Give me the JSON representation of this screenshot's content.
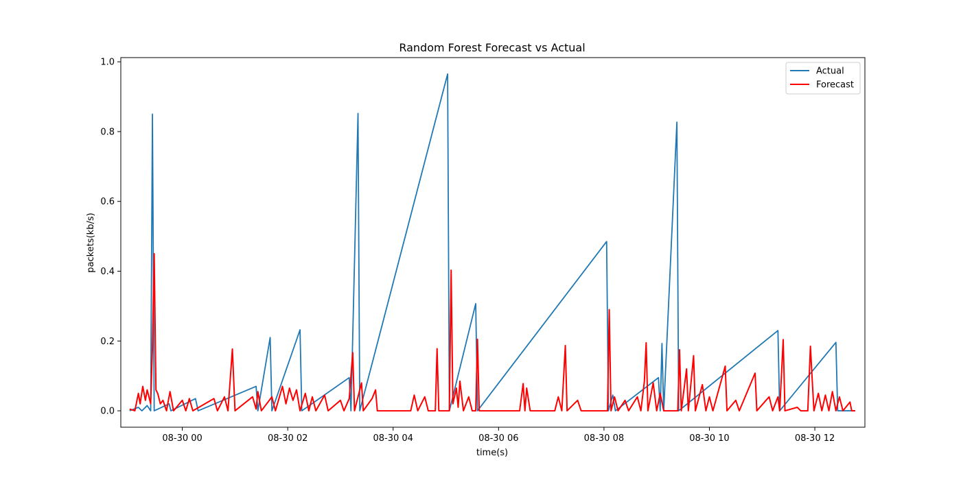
{
  "chart_data": {
    "type": "line",
    "title": "Random Forest Forecast vs Actual",
    "xlabel": "time(s)",
    "ylabel": "packets(kb/s)",
    "xlim": [
      "08-29 22:50",
      "08-30 12:57"
    ],
    "ylim": [
      -0.047,
      1.012
    ],
    "x_ticks": [
      "08-30 00",
      "08-30 02",
      "08-30 04",
      "08-30 06",
      "08-30 08",
      "08-30 10",
      "08-30 12"
    ],
    "y_ticks": [
      "0.0",
      "0.2",
      "0.4",
      "0.6",
      "0.8",
      "1.0"
    ],
    "grid": false,
    "legend": {
      "position": "top-right",
      "entries": [
        "Actual",
        "Forecast"
      ]
    },
    "series": [
      {
        "name": "Actual",
        "color": "#1f77b4",
        "points": [
          [
            "08-29 23:00",
            0.0
          ],
          [
            "08-29 23:10",
            0.01
          ],
          [
            "08-29 23:14",
            0.0
          ],
          [
            "08-29 23:20",
            0.015
          ],
          [
            "08-29 23:24",
            0.0
          ],
          [
            "08-29 23:26",
            0.85
          ],
          [
            "08-29 23:28",
            0.0
          ],
          [
            "08-29 23:45",
            0.02
          ],
          [
            "08-29 23:47",
            0.0
          ],
          [
            "08-30 00:15",
            0.035
          ],
          [
            "08-30 00:18",
            0.0
          ],
          [
            "08-30 01:24",
            0.07
          ],
          [
            "08-30 01:26",
            0.0
          ],
          [
            "08-30 01:40",
            0.21
          ],
          [
            "08-30 01:42",
            0.0
          ],
          [
            "08-30 02:14",
            0.232
          ],
          [
            "08-30 02:16",
            0.0
          ],
          [
            "08-30 03:10",
            0.095
          ],
          [
            "08-30 03:12",
            0.0
          ],
          [
            "08-30 03:20",
            0.852
          ],
          [
            "08-30 03:22",
            0.0
          ],
          [
            "08-30 05:02",
            0.965
          ],
          [
            "08-30 05:04",
            0.0
          ],
          [
            "08-30 05:34",
            0.307
          ],
          [
            "08-30 05:36",
            0.0
          ],
          [
            "08-30 08:03",
            0.485
          ],
          [
            "08-30 08:05",
            0.0
          ],
          [
            "08-30 08:10",
            0.045
          ],
          [
            "08-30 08:13",
            0.0
          ],
          [
            "08-30 09:02",
            0.095
          ],
          [
            "08-30 09:04",
            0.0
          ],
          [
            "08-30 09:06",
            0.193
          ],
          [
            "08-30 09:08",
            0.0
          ],
          [
            "08-30 09:23",
            0.827
          ],
          [
            "08-30 09:25",
            0.0
          ],
          [
            "08-30 11:18",
            0.23
          ],
          [
            "08-30 11:20",
            0.0
          ],
          [
            "08-30 12:24",
            0.196
          ],
          [
            "08-30 12:26",
            0.0
          ],
          [
            "08-30 12:46",
            0.0
          ]
        ]
      },
      {
        "name": "Forecast",
        "color": "#ff0000",
        "points": [
          [
            "08-29 23:00",
            0.005
          ],
          [
            "08-29 23:06",
            0.0
          ],
          [
            "08-29 23:10",
            0.05
          ],
          [
            "08-29 23:12",
            0.02
          ],
          [
            "08-29 23:15",
            0.07
          ],
          [
            "08-29 23:18",
            0.03
          ],
          [
            "08-29 23:20",
            0.06
          ],
          [
            "08-29 23:24",
            0.02
          ],
          [
            "08-29 23:26",
            0.18
          ],
          [
            "08-29 23:28",
            0.45
          ],
          [
            "08-29 23:30",
            0.06
          ],
          [
            "08-29 23:32",
            0.05
          ],
          [
            "08-29 23:35",
            0.02
          ],
          [
            "08-29 23:38",
            0.03
          ],
          [
            "08-29 23:42",
            0.0
          ],
          [
            "08-29 23:46",
            0.055
          ],
          [
            "08-29 23:50",
            0.0
          ],
          [
            "08-30 00:00",
            0.03
          ],
          [
            "08-30 00:04",
            0.0
          ],
          [
            "08-30 00:08",
            0.035
          ],
          [
            "08-30 00:12",
            0.0
          ],
          [
            "08-30 00:36",
            0.035
          ],
          [
            "08-30 00:40",
            0.0
          ],
          [
            "08-30 00:48",
            0.04
          ],
          [
            "08-30 00:52",
            0.0
          ],
          [
            "08-30 00:57",
            0.177
          ],
          [
            "08-30 01:00",
            0.0
          ],
          [
            "08-30 01:20",
            0.04
          ],
          [
            "08-30 01:24",
            0.005
          ],
          [
            "08-30 01:26",
            0.055
          ],
          [
            "08-30 01:30",
            0.0
          ],
          [
            "08-30 01:42",
            0.04
          ],
          [
            "08-30 01:46",
            0.0
          ],
          [
            "08-30 01:54",
            0.07
          ],
          [
            "08-30 01:58",
            0.02
          ],
          [
            "08-30 02:02",
            0.065
          ],
          [
            "08-30 02:06",
            0.03
          ],
          [
            "08-30 02:10",
            0.06
          ],
          [
            "08-30 02:14",
            0.0
          ],
          [
            "08-30 02:20",
            0.05
          ],
          [
            "08-30 02:24",
            0.0
          ],
          [
            "08-30 02:28",
            0.04
          ],
          [
            "08-30 02:32",
            0.0
          ],
          [
            "08-30 02:42",
            0.045
          ],
          [
            "08-30 02:46",
            0.0
          ],
          [
            "08-30 03:00",
            0.03
          ],
          [
            "08-30 03:04",
            0.0
          ],
          [
            "08-30 03:10",
            0.035
          ],
          [
            "08-30 03:14",
            0.167
          ],
          [
            "08-30 03:16",
            0.0
          ],
          [
            "08-30 03:24",
            0.08
          ],
          [
            "08-30 03:26",
            0.0
          ],
          [
            "08-30 03:36",
            0.035
          ],
          [
            "08-30 03:40",
            0.06
          ],
          [
            "08-30 03:42",
            0.0
          ],
          [
            "08-30 04:20",
            0.0
          ],
          [
            "08-30 04:24",
            0.045
          ],
          [
            "08-30 04:28",
            0.0
          ],
          [
            "08-30 04:36",
            0.04
          ],
          [
            "08-30 04:40",
            0.0
          ],
          [
            "08-30 04:48",
            0.0
          ],
          [
            "08-30 04:50",
            0.178
          ],
          [
            "08-30 04:52",
            0.0
          ],
          [
            "08-30 05:04",
            0.0
          ],
          [
            "08-30 05:06",
            0.403
          ],
          [
            "08-30 05:08",
            0.02
          ],
          [
            "08-30 05:12",
            0.065
          ],
          [
            "08-30 05:14",
            0.01
          ],
          [
            "08-30 05:16",
            0.085
          ],
          [
            "08-30 05:20",
            0.0
          ],
          [
            "08-30 05:26",
            0.04
          ],
          [
            "08-30 05:30",
            0.0
          ],
          [
            "08-30 05:34",
            0.0
          ],
          [
            "08-30 05:36",
            0.205
          ],
          [
            "08-30 05:38",
            0.0
          ],
          [
            "08-30 06:24",
            0.0
          ],
          [
            "08-30 06:28",
            0.078
          ],
          [
            "08-30 06:30",
            0.0
          ],
          [
            "08-30 06:32",
            0.065
          ],
          [
            "08-30 06:36",
            0.0
          ],
          [
            "08-30 07:04",
            0.0
          ],
          [
            "08-30 07:08",
            0.04
          ],
          [
            "08-30 07:12",
            0.0
          ],
          [
            "08-30 07:16",
            0.187
          ],
          [
            "08-30 07:18",
            0.0
          ],
          [
            "08-30 07:30",
            0.03
          ],
          [
            "08-30 07:34",
            0.0
          ],
          [
            "08-30 08:04",
            0.0
          ],
          [
            "08-30 08:06",
            0.29
          ],
          [
            "08-30 08:08",
            0.0
          ],
          [
            "08-30 08:12",
            0.04
          ],
          [
            "08-30 08:16",
            0.0
          ],
          [
            "08-30 08:24",
            0.03
          ],
          [
            "08-30 08:28",
            0.0
          ],
          [
            "08-30 08:38",
            0.04
          ],
          [
            "08-30 08:42",
            0.0
          ],
          [
            "08-30 08:46",
            0.085
          ],
          [
            "08-30 08:48",
            0.195
          ],
          [
            "08-30 08:50",
            0.0
          ],
          [
            "08-30 08:56",
            0.08
          ],
          [
            "08-30 09:00",
            0.0
          ],
          [
            "08-30 09:04",
            0.05
          ],
          [
            "08-30 09:08",
            0.0
          ],
          [
            "08-30 09:24",
            0.0
          ],
          [
            "08-30 09:26",
            0.175
          ],
          [
            "08-30 09:28",
            0.0
          ],
          [
            "08-30 09:34",
            0.12
          ],
          [
            "08-30 09:36",
            0.0
          ],
          [
            "08-30 09:42",
            0.158
          ],
          [
            "08-30 09:44",
            0.0
          ],
          [
            "08-30 09:52",
            0.075
          ],
          [
            "08-30 09:56",
            0.0
          ],
          [
            "08-30 10:00",
            0.04
          ],
          [
            "08-30 10:04",
            0.0
          ],
          [
            "08-30 10:18",
            0.128
          ],
          [
            "08-30 10:20",
            0.0
          ],
          [
            "08-30 10:30",
            0.03
          ],
          [
            "08-30 10:34",
            0.0
          ],
          [
            "08-30 10:52",
            0.108
          ],
          [
            "08-30 10:54",
            0.0
          ],
          [
            "08-30 11:08",
            0.04
          ],
          [
            "08-30 11:12",
            0.0
          ],
          [
            "08-30 11:18",
            0.04
          ],
          [
            "08-30 11:20",
            0.0
          ],
          [
            "08-30 11:24",
            0.204
          ],
          [
            "08-30 11:26",
            0.0
          ],
          [
            "08-30 11:40",
            0.01
          ],
          [
            "08-30 11:44",
            0.0
          ],
          [
            "08-30 11:52",
            0.0
          ],
          [
            "08-30 11:55",
            0.185
          ],
          [
            "08-30 11:57",
            0.09
          ],
          [
            "08-30 11:59",
            0.0
          ],
          [
            "08-30 12:04",
            0.05
          ],
          [
            "08-30 12:08",
            0.0
          ],
          [
            "08-30 12:12",
            0.045
          ],
          [
            "08-30 12:16",
            0.0
          ],
          [
            "08-30 12:20",
            0.055
          ],
          [
            "08-30 12:24",
            0.0
          ],
          [
            "08-30 12:28",
            0.04
          ],
          [
            "08-30 12:32",
            0.0
          ],
          [
            "08-30 12:40",
            0.025
          ],
          [
            "08-30 12:42",
            0.0
          ],
          [
            "08-30 12:46",
            0.0
          ]
        ]
      }
    ]
  }
}
